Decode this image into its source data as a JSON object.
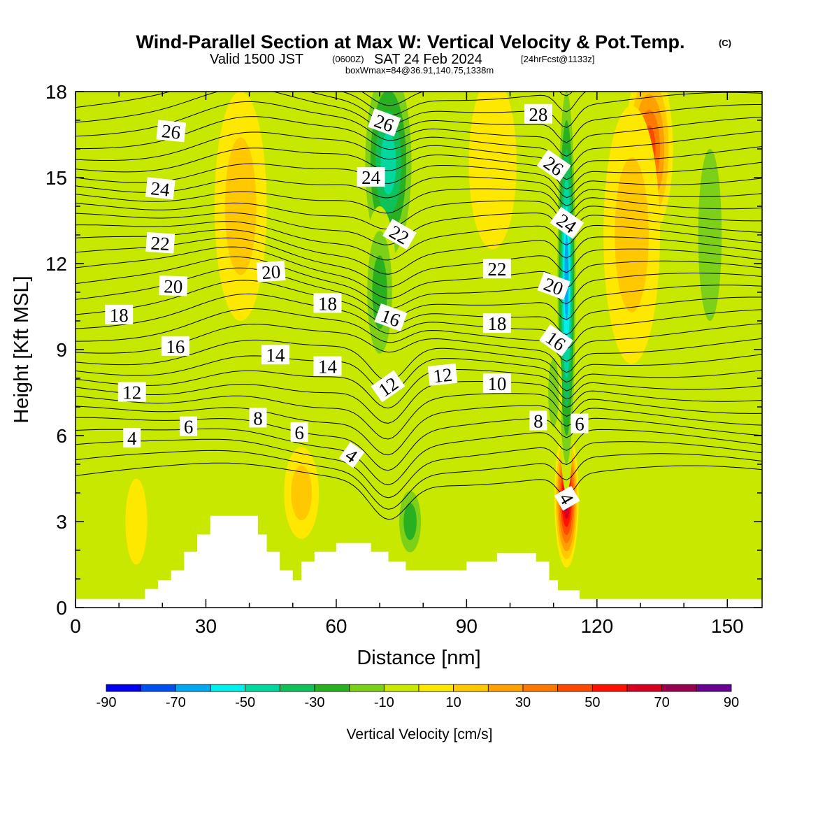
{
  "title": {
    "main": "Wind-Parallel Section at Max W: Vertical Velocity & Pot.Temp.",
    "copyright": "(C)",
    "valid_prefix": "Valid 1500 JST",
    "valid_utc": "(0600Z)",
    "valid_date": "SAT 24 Feb 2024",
    "forecast": "[24hrFcst@1133z]",
    "box_info": "boxWmax=84@36.91,140.75,1338m"
  },
  "chart_data": {
    "type": "heatmap",
    "xlabel": "Distance [nm]",
    "ylabel": "Height [Kft MSL]",
    "xlim": [
      0,
      158
    ],
    "ylim": [
      0,
      18
    ],
    "x_ticks": [
      0,
      30,
      60,
      90,
      120,
      150
    ],
    "y_ticks": [
      0,
      3,
      6,
      9,
      12,
      15,
      18
    ],
    "colorbar": {
      "title": "Vertical Velocity [cm/s]",
      "levels": [
        -90,
        -80,
        -70,
        -60,
        -50,
        -40,
        -30,
        -20,
        -10,
        0,
        10,
        20,
        30,
        40,
        50,
        60,
        70,
        80,
        90
      ],
      "tick_labels": [
        "-90",
        "-70",
        "-50",
        "-30",
        "-10",
        "10",
        "30",
        "50",
        "70",
        "90"
      ],
      "colors": [
        "#0000f0",
        "#0050f0",
        "#00a8f0",
        "#00f0f0",
        "#00d8a0",
        "#10c058",
        "#28b020",
        "#7cd018",
        "#c8e800",
        "#ffe800",
        "#ffc800",
        "#ffa000",
        "#ff7800",
        "#ff4800",
        "#ff1000",
        "#d80020",
        "#980050",
        "#680090"
      ]
    },
    "background_color": "#c8e800",
    "terrain": [
      [
        0,
        0.3
      ],
      [
        16,
        0.3
      ],
      [
        16,
        0.65
      ],
      [
        19,
        0.65
      ],
      [
        19,
        0.95
      ],
      [
        22,
        0.95
      ],
      [
        22,
        1.3
      ],
      [
        25,
        1.3
      ],
      [
        25,
        1.95
      ],
      [
        28,
        1.95
      ],
      [
        28,
        2.55
      ],
      [
        31,
        2.55
      ],
      [
        31,
        3.2
      ],
      [
        42,
        3.2
      ],
      [
        42,
        2.55
      ],
      [
        44,
        2.55
      ],
      [
        44,
        1.95
      ],
      [
        47,
        1.95
      ],
      [
        47,
        1.3
      ],
      [
        50,
        1.3
      ],
      [
        50,
        0.95
      ],
      [
        52,
        0.95
      ],
      [
        52,
        1.6
      ],
      [
        55,
        1.6
      ],
      [
        55,
        1.95
      ],
      [
        60,
        1.95
      ],
      [
        60,
        2.25
      ],
      [
        68,
        2.25
      ],
      [
        68,
        1.95
      ],
      [
        72,
        1.95
      ],
      [
        72,
        1.6
      ],
      [
        76,
        1.6
      ],
      [
        76,
        1.3
      ],
      [
        90,
        1.3
      ],
      [
        90,
        1.6
      ],
      [
        97,
        1.6
      ],
      [
        97,
        1.9
      ],
      [
        106,
        1.9
      ],
      [
        106,
        1.6
      ],
      [
        109,
        1.6
      ],
      [
        109,
        0.95
      ],
      [
        111,
        0.95
      ],
      [
        111,
        0.6
      ],
      [
        116,
        0.6
      ],
      [
        116,
        0.3
      ],
      [
        158,
        0.3
      ]
    ],
    "w_features": [
      {
        "x": 113,
        "y": 3.8,
        "rx": 2.8,
        "ry": 2.4,
        "value": 80
      },
      {
        "x": 113,
        "y": 11.5,
        "rx": 2.4,
        "ry": 7.5,
        "value": -70
      },
      {
        "x": 72,
        "y": 15.5,
        "rx": 6.5,
        "ry": 4.0,
        "value": -50
      },
      {
        "x": 70,
        "y": 11.0,
        "rx": 4.0,
        "ry": 3.0,
        "value": -35
      },
      {
        "x": 132,
        "y": 16.0,
        "rx": 5.5,
        "ry": 3.0,
        "value": 50
      },
      {
        "x": 128,
        "y": 13.0,
        "rx": 6.5,
        "ry": 4.5,
        "value": 25
      },
      {
        "x": 38,
        "y": 14.0,
        "rx": 6.0,
        "ry": 4.0,
        "value": 25
      },
      {
        "x": 52,
        "y": 4.0,
        "rx": 4.0,
        "ry": 1.6,
        "value": 22
      },
      {
        "x": 146,
        "y": 13.0,
        "rx": 4.5,
        "ry": 5.0,
        "value": -25
      },
      {
        "x": 77,
        "y": 3.0,
        "rx": 3.5,
        "ry": 1.5,
        "value": -35
      },
      {
        "x": 66,
        "y": 5.5,
        "rx": 3.0,
        "ry": 1.2,
        "value": -15
      },
      {
        "x": 110,
        "y": 7.5,
        "rx": 2.0,
        "ry": 2.0,
        "value": -20
      },
      {
        "x": 14,
        "y": 3.0,
        "rx": 2.5,
        "ry": 1.5,
        "value": 15
      },
      {
        "x": 96,
        "y": 15.5,
        "rx": 5.5,
        "ry": 3.0,
        "value": 18
      }
    ],
    "theta_labels": [
      {
        "text": "26",
        "x": 22,
        "y": 16.6,
        "rot": 6
      },
      {
        "text": "24",
        "x": 19.5,
        "y": 14.6,
        "rot": 6
      },
      {
        "text": "22",
        "x": 19.5,
        "y": 12.7,
        "rot": 4
      },
      {
        "text": "20",
        "x": 22.5,
        "y": 11.2,
        "rot": 2
      },
      {
        "text": "18",
        "x": 10,
        "y": 10.2,
        "rot": 0
      },
      {
        "text": "16",
        "x": 23,
        "y": 9.1,
        "rot": 0
      },
      {
        "text": "12",
        "x": 13,
        "y": 7.5,
        "rot": 0
      },
      {
        "text": "4",
        "x": 13,
        "y": 5.9,
        "rot": 0
      },
      {
        "text": "6",
        "x": 26,
        "y": 6.3,
        "rot": 0
      },
      {
        "text": "8",
        "x": 42,
        "y": 6.6,
        "rot": 0
      },
      {
        "text": "6",
        "x": 51.5,
        "y": 6.1,
        "rot": 0
      },
      {
        "text": "20",
        "x": 45,
        "y": 11.7,
        "rot": -4
      },
      {
        "text": "14",
        "x": 46,
        "y": 8.8,
        "rot": 0
      },
      {
        "text": "14",
        "x": 58,
        "y": 8.4,
        "rot": 0
      },
      {
        "text": "18",
        "x": 58,
        "y": 10.6,
        "rot": 0
      },
      {
        "text": "4",
        "x": 63.5,
        "y": 5.3,
        "rot": 35
      },
      {
        "text": "12",
        "x": 72,
        "y": 7.7,
        "rot": -35
      },
      {
        "text": "16",
        "x": 72.5,
        "y": 10.1,
        "rot": 20
      },
      {
        "text": "22",
        "x": 74.5,
        "y": 13.0,
        "rot": 30
      },
      {
        "text": "24",
        "x": 68,
        "y": 15.0,
        "rot": 0
      },
      {
        "text": "26",
        "x": 71,
        "y": 16.9,
        "rot": 20
      },
      {
        "text": "12",
        "x": 84.5,
        "y": 8.1,
        "rot": -6
      },
      {
        "text": "10",
        "x": 97,
        "y": 7.8,
        "rot": 0
      },
      {
        "text": "18",
        "x": 97,
        "y": 9.9,
        "rot": 0
      },
      {
        "text": "22",
        "x": 97,
        "y": 11.8,
        "rot": 0
      },
      {
        "text": "28",
        "x": 106.5,
        "y": 17.2,
        "rot": 0
      },
      {
        "text": "26",
        "x": 110,
        "y": 15.4,
        "rot": 35
      },
      {
        "text": "24",
        "x": 113,
        "y": 13.4,
        "rot": 35
      },
      {
        "text": "20",
        "x": 110,
        "y": 11.2,
        "rot": 20
      },
      {
        "text": "16",
        "x": 110.5,
        "y": 9.3,
        "rot": 35
      },
      {
        "text": "8",
        "x": 106.5,
        "y": 6.5,
        "rot": 0
      },
      {
        "text": "6",
        "x": 116,
        "y": 6.4,
        "rot": 0
      },
      {
        "text": "4",
        "x": 113,
        "y": 3.8,
        "rot": 60
      }
    ]
  }
}
